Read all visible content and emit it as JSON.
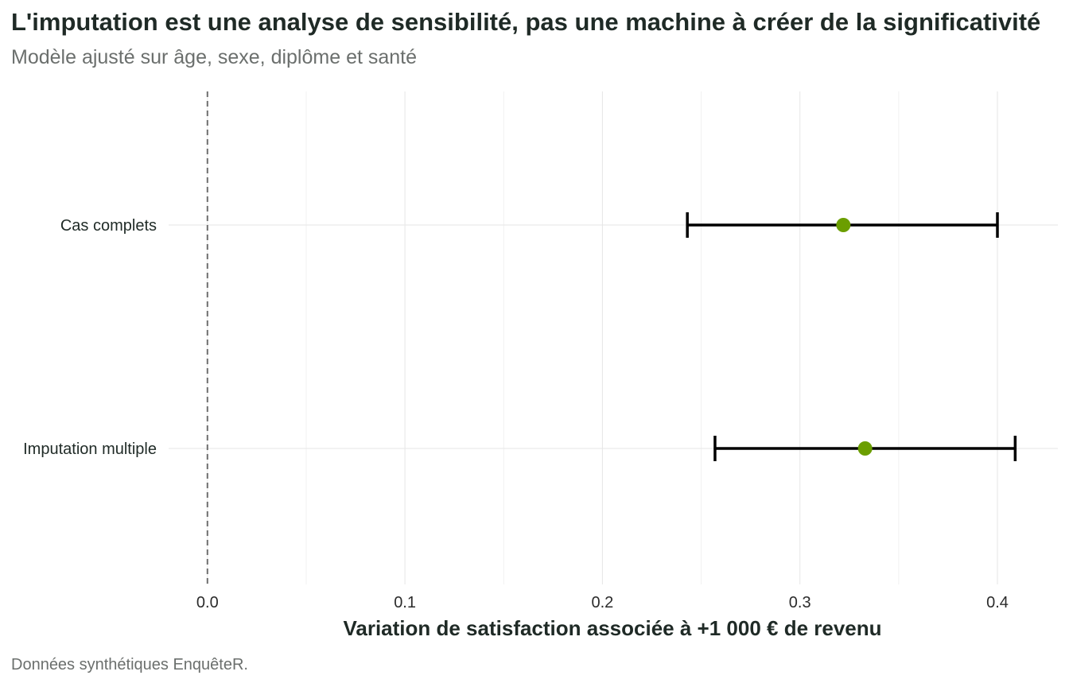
{
  "chart_data": {
    "type": "forest",
    "title": "L'imputation est une analyse de sensibilité, pas une machine à créer de la significativité",
    "subtitle": "Modèle ajusté sur âge, sexe, diplôme et santé",
    "caption": "Données synthétiques EnquêteR.",
    "xlabel": "Variation de satisfaction associée à +1 000 € de revenu",
    "ylabel": "",
    "xlim": [
      -0.01,
      0.43
    ],
    "xticks": [
      0.0,
      0.1,
      0.2,
      0.3,
      0.4
    ],
    "xtick_labels": [
      "0.0",
      "0.1",
      "0.2",
      "0.3",
      "0.4"
    ],
    "reference_line": 0,
    "grid": true,
    "point_color": "#6b9e00",
    "estimates": [
      {
        "label": "Cas complets",
        "estimate": 0.322,
        "ci_low": 0.243,
        "ci_high": 0.4
      },
      {
        "label": "Imputation multiple",
        "estimate": 0.333,
        "ci_low": 0.257,
        "ci_high": 0.409
      }
    ]
  }
}
